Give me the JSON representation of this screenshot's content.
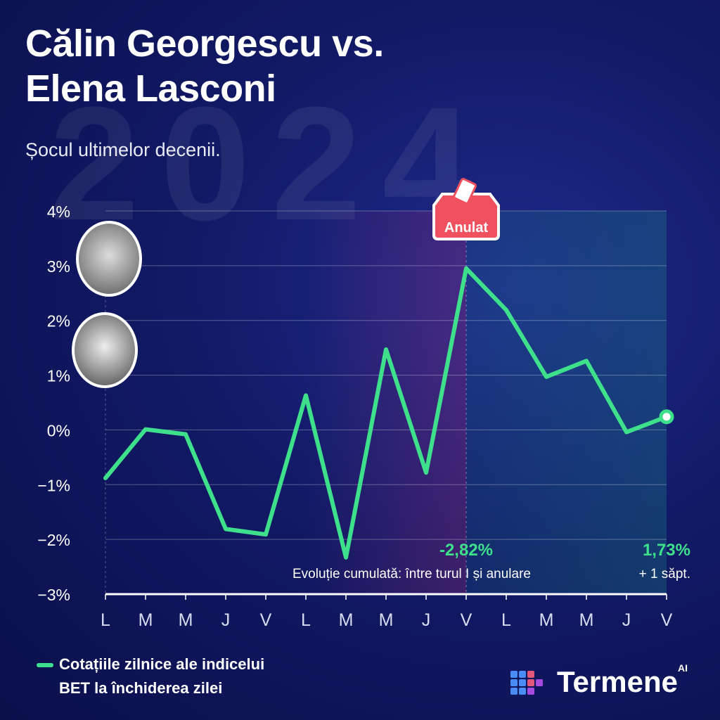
{
  "header": {
    "title_line1": "Călin Georgescu vs.",
    "title_line2": "Elena Lasconi",
    "subtitle": "Șocul ultimelor decenii.",
    "background_text": "2024"
  },
  "colors": {
    "line": "#3fe08c",
    "annul_badge": "#f0515e",
    "background": "#121a66"
  },
  "chart_data": {
    "type": "line",
    "categories": [
      "L",
      "M",
      "M",
      "J",
      "V",
      "L",
      "M",
      "M",
      "J",
      "V",
      "L",
      "M",
      "M",
      "J",
      "V"
    ],
    "series": [
      {
        "name": "Cotațiile zilnice ale indicelui BET la închiderea zilei",
        "values": [
          -0.88,
          0.01,
          -0.08,
          -1.81,
          -1.91,
          0.63,
          -2.33,
          1.47,
          -0.78,
          2.95,
          2.19,
          0.97,
          1.26,
          -0.04,
          0.24
        ]
      }
    ],
    "yticks": [
      "4%",
      "3%",
      "2%",
      "1%",
      "0%",
      "−1%",
      "−2%",
      "−3%"
    ],
    "ylim": [
      -3,
      4
    ],
    "grid": true,
    "annotations": {
      "annul_badge": "Anulat",
      "between_value": "-2,82%",
      "between_label": "Evoluție cumulată:  între turul I și anulare",
      "after_value": "1,73%",
      "after_label": "+ 1 săpt."
    },
    "legend": {
      "line1": "Cotațiile zilnice ale indicelui",
      "line2": "BET la închiderea zilei",
      "placement": "bottom-left"
    }
  },
  "logo": {
    "name": "Termene",
    "suffix": "AI"
  }
}
